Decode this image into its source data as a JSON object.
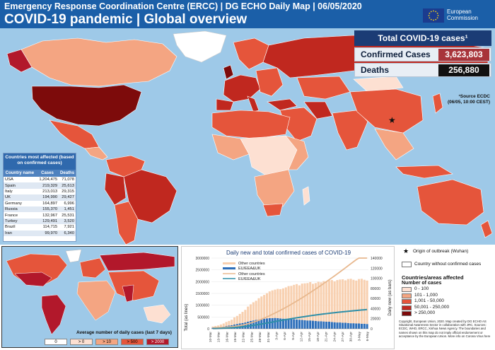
{
  "header": {
    "line1": "Emergency Response Coordination Centre (ERCC) | DG ECHO Daily Map | 06/05/2020",
    "line2": "COVID-19 pandemic | Global overview",
    "logo_text": "European\nCommission"
  },
  "totals": {
    "title": "Total COVID-19 cases¹",
    "confirmed_label": "Confirmed Cases",
    "confirmed_value": "3,623,803",
    "deaths_label": "Deaths",
    "deaths_value": "256,880",
    "source": "¹Source ECDC\n(06/05, 10:00 CEST)"
  },
  "affected_table": {
    "title": "Countries most affected (based on confirmed cases)",
    "headers": [
      "Country name",
      "Cases",
      "Deaths"
    ],
    "rows": [
      [
        "USA",
        "1,204,475",
        "71,078"
      ],
      [
        "Spain",
        "219,329",
        "25,613"
      ],
      [
        "Italy",
        "213,013",
        "29,315"
      ],
      [
        "UK",
        "194,990",
        "29,427"
      ],
      [
        "Germany",
        "164,897",
        "6,996"
      ],
      [
        "Russia",
        "155,370",
        "1,451"
      ],
      [
        "France",
        "132,967",
        "25,531"
      ],
      [
        "Turkey",
        "129,491",
        "3,520"
      ],
      [
        "Brazil",
        "114,715",
        "7,921"
      ],
      [
        "Iran",
        "99,970",
        "6,340"
      ]
    ]
  },
  "minimap": {
    "title": "Average number of daily cases (last 7 days)",
    "legend": [
      "0",
      "> 0",
      "> 10",
      "> 500",
      "> 2000"
    ],
    "legend_colors": [
      "#ffffff",
      "#fde0d2",
      "#f4a582",
      "#e5553b",
      "#b2182b"
    ]
  },
  "chart_data": {
    "type": "bar",
    "title": "Daily new and total confirmed cases of COVID-19",
    "ylabel_left": "Total (as lines)",
    "ylabel_right": "Daily new (as bars)",
    "yticks_left": [
      "0",
      "500000",
      "1000000",
      "1500000",
      "2000000",
      "2500000",
      "3000000"
    ],
    "yticks_right": [
      "0",
      "20000",
      "40000",
      "60000",
      "80000",
      "100000",
      "120000",
      "140000"
    ],
    "ylim_left": [
      0,
      3000000
    ],
    "ylim_right": [
      0,
      140000
    ],
    "xticks": [
      "10-Mar",
      "13-Mar",
      "16-Mar",
      "19-Mar",
      "22-Mar",
      "25-Mar",
      "28-Mar",
      "31-Mar",
      "3-Apr",
      "6-Apr",
      "9-Apr",
      "12-Apr",
      "15-Apr",
      "18-Apr",
      "21-Apr",
      "24-Apr",
      "27-Apr",
      "30-Apr",
      "3-May",
      "6-May"
    ],
    "series": [
      {
        "name": "Other countries",
        "kind": "bar",
        "color": "#f8d0b0",
        "values": [
          2500,
          3000,
          3500,
          5000,
          6000,
          8000,
          9000,
          11000,
          14000,
          16000,
          19000,
          22000,
          25000,
          30000,
          33000,
          36000,
          38000,
          42000,
          45000,
          47000,
          50000,
          53000,
          55000,
          56000,
          58000,
          58000,
          60000,
          62000,
          65000,
          66000,
          68000,
          70000,
          68000,
          72000,
          73000,
          74000,
          76000,
          73000,
          75000,
          78000,
          77000,
          80000,
          79000,
          82000,
          83000,
          81000,
          84000,
          85000,
          86000,
          84000,
          87000,
          88000,
          86000,
          85000,
          88000,
          89000,
          87000,
          86000
        ]
      },
      {
        "name": "EU/EEA&UK",
        "kind": "bar",
        "color": "#2e6fba",
        "values": [
          2000,
          2500,
          3000,
          3500,
          4500,
          5500,
          6500,
          7000,
          8500,
          9500,
          10500,
          11500,
          12500,
          14000,
          15500,
          16500,
          17500,
          18500,
          19000,
          20000,
          20500,
          21000,
          21000,
          21500,
          21000,
          20500,
          20000,
          20000,
          19500,
          19000,
          19000,
          18500,
          18000,
          17500,
          17000,
          16500,
          16500,
          16000,
          15500,
          15000,
          15000,
          14500,
          14000,
          14000,
          13500,
          13000,
          12500,
          12500,
          12000,
          12000,
          11500,
          11000,
          11000,
          10500,
          10500,
          10000,
          10000,
          9500
        ]
      },
      {
        "name": "Other countries",
        "kind": "line",
        "color": "#e8b88e",
        "values": [
          40000,
          44000,
          48000,
          54000,
          60000,
          68000,
          77000,
          88000,
          102000,
          118000,
          137000,
          159000,
          184000,
          214000,
          247000,
          283000,
          321000,
          363000,
          408000,
          455000,
          505000,
          558000,
          613000,
          669000,
          727000,
          785000,
          845000,
          907000,
          972000,
          1038000,
          1106000,
          1176000,
          1244000,
          1316000,
          1389000,
          1463000,
          1539000,
          1612000,
          1687000,
          1765000,
          1842000,
          1922000,
          2001000,
          2083000,
          2166000,
          2247000,
          2331000,
          2416000,
          2502000,
          2586000,
          2673000,
          2761000,
          2847000,
          2932000,
          3020000,
          3109000,
          3196000,
          3282000
        ]
      },
      {
        "name": "EU/EEA&UK",
        "kind": "line",
        "color": "#2f8fa8",
        "values": [
          10000,
          13000,
          16000,
          20000,
          25000,
          31000,
          38000,
          45000,
          54000,
          64000,
          75000,
          87000,
          100000,
          114000,
          130000,
          147000,
          165000,
          184000,
          203000,
          223000,
          244000,
          265000,
          286000,
          308000,
          329000,
          350000,
          370000,
          390000,
          410000,
          429000,
          448000,
          467000,
          485000,
          502000,
          519000,
          536000,
          553000,
          569000,
          584000,
          599000,
          614000,
          629000,
          643000,
          657000,
          670000,
          683000,
          696000,
          708000,
          720000,
          732000,
          744000,
          755000,
          766000,
          776000,
          787000,
          797000,
          807000,
          817000
        ]
      }
    ]
  },
  "legend": {
    "origin": "Origin of outbreak (Wuhan)",
    "no_cases": "Country without confirmed cases",
    "affected_title": "Countries/areas affected",
    "num_cases": "Number of cases",
    "classes": [
      "0 - 100",
      "101 - 1,000",
      "1,001 - 50,000",
      "50,001 - 250,000",
      "> 250,000"
    ],
    "class_colors": [
      "#fde0d2",
      "#f4a582",
      "#e5553b",
      "#c0281f",
      "#7d0b0b"
    ],
    "credits": "Copyright, European Union, 2020. Map created by DG ECHO AS Situational Awareness Sector in collaboration with JRC. Sources: ECDC, WHO, ERCC, Xinhua News Agency. The boundaries and names shown on this map do not imply official endorsement or acceptance by the European Union. More info on Corona Virus here"
  }
}
